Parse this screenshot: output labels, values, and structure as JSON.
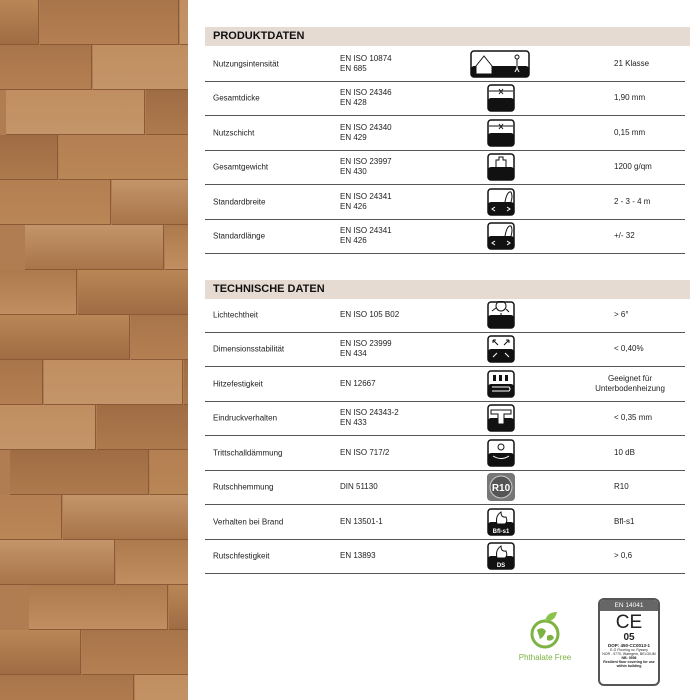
{
  "produktdaten": {
    "title": "PRODUKTDATEN",
    "rows": [
      {
        "label": "Nutzungsintensität",
        "norm": [
          "EN ISO 10874",
          "EN 685"
        ],
        "icon": "usage-class-icon",
        "value": "21 Klasse"
      },
      {
        "label": "Gesamtdicke",
        "norm": [
          "EN ISO 24346",
          "EN 428"
        ],
        "icon": "total-thickness-icon",
        "value": "1,90 mm"
      },
      {
        "label": "Nutzschicht",
        "norm": [
          "EN ISO 24340",
          "EN 429"
        ],
        "icon": "wear-layer-icon",
        "value": "0,15 mm"
      },
      {
        "label": "Gesamtgewicht",
        "norm": [
          "EN ISO 23997",
          "EN 430"
        ],
        "icon": "weight-icon",
        "value": "1200 g/qm"
      },
      {
        "label": "Standardbreite",
        "norm": [
          "EN ISO 24341",
          "EN 426"
        ],
        "icon": "roll-width-icon",
        "value": "2 - 3 - 4 m"
      },
      {
        "label": "Standardlänge",
        "norm": [
          "EN ISO 24341",
          "EN 426"
        ],
        "icon": "roll-length-icon",
        "value": "+/- 32"
      }
    ]
  },
  "technische_daten": {
    "title": "TECHNISCHE DATEN",
    "rows": [
      {
        "label": "Lichtechtheit",
        "norm": [
          "EN ISO 105 B02"
        ],
        "icon": "sun-icon",
        "value": "> 6°"
      },
      {
        "label": "Dimensionsstabilität",
        "norm": [
          "EN ISO 23999",
          "EN 434"
        ],
        "icon": "arrows-expand-icon",
        "value": "< 0,40%"
      },
      {
        "label": "Hitzefestigkeit",
        "norm": [
          "EN 12667"
        ],
        "icon": "floor-heating-icon",
        "value": "Geeignet für Unterbodenheizung"
      },
      {
        "label": "Eindruckverhalten",
        "norm": [
          "EN ISO 24343-2",
          "EN 433"
        ],
        "icon": "indentation-icon",
        "value": "< 0,35 mm"
      },
      {
        "label": "Trittschalldämmung",
        "norm": [
          "EN ISO 717/2"
        ],
        "icon": "sound-icon",
        "value": "10 dB"
      },
      {
        "label": "Rutschhemmung",
        "norm": [
          "DIN 51130"
        ],
        "icon": "r10-icon",
        "icon_text": "R10",
        "value": "R10"
      },
      {
        "label": "Verhalten bei Brand",
        "norm": [
          "EN 13501-1"
        ],
        "icon": "fire-icon",
        "icon_text": "Bfl-s1",
        "value": "Bfl-s1"
      },
      {
        "label": "Rutschfestigkeit",
        "norm": [
          "EN 13893"
        ],
        "icon": "slip-icon",
        "icon_text": "DS",
        "value": "> 0,6"
      }
    ]
  },
  "badges": {
    "phthalate": "Phthalate Free",
    "ce": {
      "standard": "EN 14041",
      "mark": "CE",
      "number": "05",
      "dop": "DOP: 450-CC0013-1",
      "small": [
        "E-G Flooring nv, Ryssey",
        "NOR - 9770, Waregem, BELGIUM",
        "NB: 0556",
        "Resilient floor covering for use within building"
      ]
    }
  },
  "colors": {
    "header_bg": "#e6dbd2",
    "wood": "#b07d52",
    "green": "#7cb342"
  }
}
